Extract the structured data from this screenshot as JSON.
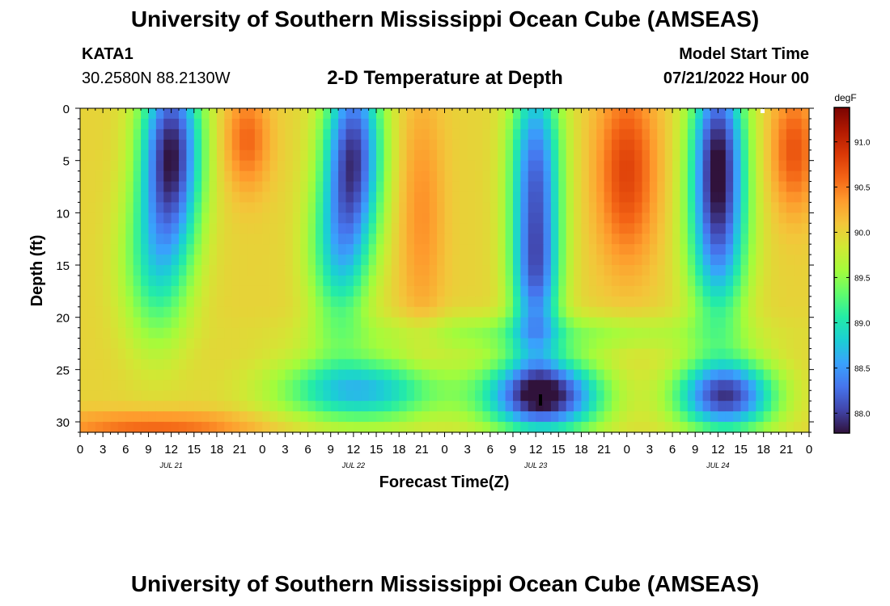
{
  "header": {
    "title": "University of Southern Mississippi Ocean Cube (AMSEAS)",
    "station": "KATA1",
    "coords": "30.2580N  88.2130W",
    "plot_title": "2-D Temperature at Depth",
    "model_start_label": "Model Start Time",
    "model_start_value": "07/21/2022 Hour 00"
  },
  "footer": {
    "title": "University of Southern Mississippi Ocean Cube (AMSEAS)"
  },
  "colors": {
    "colormap": [
      "#30123b",
      "#4145ab",
      "#4675ed",
      "#39a2fc",
      "#1bcfd4",
      "#24eca6",
      "#61fc6c",
      "#a4fc3b",
      "#d1e834",
      "#f3c63a",
      "#fe9b2d",
      "#f36315",
      "#d93806",
      "#b11901",
      "#7a0402"
    ]
  },
  "chart_data": {
    "type": "heatmap",
    "title": "2-D Temperature at Depth",
    "xlabel": "Forecast Time(Z)",
    "ylabel": "Depth (ft)",
    "x_range_hours": [
      0,
      96
    ],
    "y_range_ft": [
      0,
      31
    ],
    "x_tick_labels": [
      "0",
      "3",
      "6",
      "9",
      "12",
      "15",
      "18",
      "21",
      "0",
      "3",
      "6",
      "9",
      "12",
      "15",
      "18",
      "21",
      "0",
      "3",
      "6",
      "9",
      "12",
      "15",
      "18",
      "21",
      "0",
      "3",
      "6",
      "9",
      "12",
      "15",
      "18",
      "21",
      "0"
    ],
    "y_ticks": [
      0,
      5,
      10,
      15,
      20,
      25,
      30
    ],
    "y_tick_labels": [
      "0",
      "5",
      "10",
      "15",
      "20",
      "25",
      "30"
    ],
    "date_labels": [
      {
        "text": "JUL 21",
        "hour": 12
      },
      {
        "text": "JUL 22",
        "hour": 36
      },
      {
        "text": "JUL 23",
        "hour": 60
      },
      {
        "text": "JUL 24",
        "hour": 84
      }
    ],
    "colorbar": {
      "unit": "degF",
      "min": 87.78,
      "max": 91.38,
      "ticks": [
        88.0,
        88.5,
        89.0,
        89.5,
        90.0,
        90.5,
        91.0
      ],
      "tick_labels": [
        "88.0",
        "88.5",
        "89.0",
        "89.5",
        "90.0",
        "90.5",
        "91.0"
      ]
    },
    "background_temp": 90.0,
    "features": [
      {
        "hour": 12,
        "depth": 4,
        "width_h": 4.0,
        "depth_extent": 9,
        "amp": -2.1
      },
      {
        "hour": 10,
        "depth": 15,
        "width_h": 4.5,
        "depth_extent": 8,
        "amp": -0.9
      },
      {
        "hour": 36,
        "depth": 4,
        "width_h": 3.8,
        "depth_extent": 9,
        "amp": -1.9
      },
      {
        "hour": 34,
        "depth": 14,
        "width_h": 4.0,
        "depth_extent": 8,
        "amp": -1.0
      },
      {
        "hour": 60,
        "depth": 6,
        "width_h": 3.4,
        "depth_extent": 10,
        "amp": -1.7
      },
      {
        "hour": 60,
        "depth": 17,
        "width_h": 3.2,
        "depth_extent": 7,
        "amp": -1.3
      },
      {
        "hour": 84,
        "depth": 4,
        "width_h": 3.6,
        "depth_extent": 9,
        "amp": -2.0
      },
      {
        "hour": 84,
        "depth": 14,
        "width_h": 4.0,
        "depth_extent": 8,
        "amp": -1.1
      },
      {
        "hour": 37,
        "depth": 27,
        "width_h": 11,
        "depth_extent": 3.2,
        "amp": -1.3
      },
      {
        "hour": 61,
        "depth": 27.5,
        "width_h": 7.5,
        "depth_extent": 3.5,
        "amp": -2.3
      },
      {
        "hour": 85,
        "depth": 27.5,
        "width_h": 6.5,
        "depth_extent": 3.4,
        "amp": -2.0
      },
      {
        "hour": 60,
        "depth": 21.5,
        "width_h": 24,
        "depth_extent": 1.8,
        "amp": -0.5
      },
      {
        "hour": 72,
        "depth": 6,
        "width_h": 4,
        "depth_extent": 9,
        "amp": 0.8
      },
      {
        "hour": 22,
        "depth": 3,
        "width_h": 3,
        "depth_extent": 5,
        "amp": 0.6
      },
      {
        "hour": 94,
        "depth": 4,
        "width_h": 3,
        "depth_extent": 6,
        "amp": 0.7
      },
      {
        "hour": 10,
        "depth": 30.5,
        "width_h": 14,
        "depth_extent": 1.5,
        "amp": 0.6
      },
      {
        "hour": 45,
        "depth": 10,
        "width_h": 3,
        "depth_extent": 12,
        "amp": 0.4
      }
    ]
  }
}
